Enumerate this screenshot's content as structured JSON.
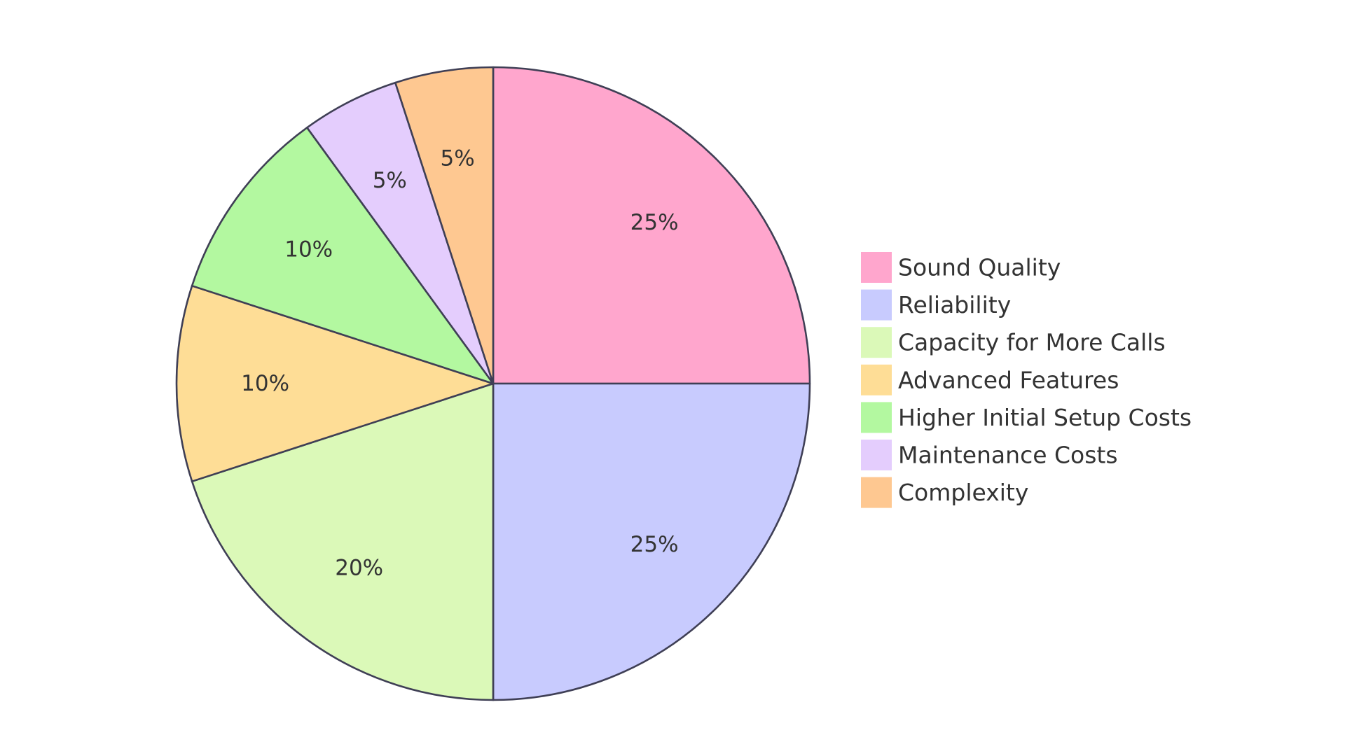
{
  "chart_data": {
    "type": "pie",
    "title": "",
    "start_angle_deg": 0,
    "direction": "clockwise",
    "legend_position": "right",
    "slices": [
      {
        "label": "Sound Quality",
        "value": 25,
        "value_label": "25%",
        "color": "#ffa6cd"
      },
      {
        "label": "Reliability",
        "value": 25,
        "value_label": "25%",
        "color": "#c8cbfe"
      },
      {
        "label": "Capacity for More Calls",
        "value": 20,
        "value_label": "20%",
        "color": "#dbf9b8"
      },
      {
        "label": "Advanced Features",
        "value": 10,
        "value_label": "10%",
        "color": "#fedd96"
      },
      {
        "label": "Higher Initial Setup Costs",
        "value": 10,
        "value_label": "10%",
        "color": "#b3f8a0"
      },
      {
        "label": "Maintenance Costs",
        "value": 5,
        "value_label": "5%",
        "color": "#e4cdfd"
      },
      {
        "label": "Complexity",
        "value": 5,
        "value_label": "5%",
        "color": "#fec891"
      }
    ],
    "stroke_color": "#3f3f55"
  }
}
